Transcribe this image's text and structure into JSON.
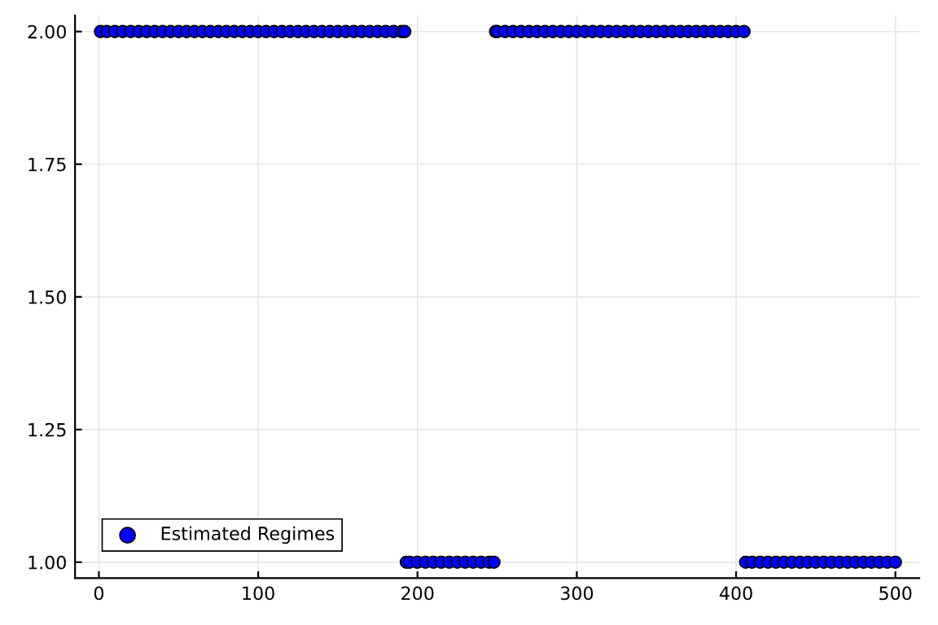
{
  "chart_data": {
    "type": "scatter",
    "x": [
      1,
      5,
      10,
      15,
      20,
      25,
      30,
      35,
      40,
      45,
      50,
      55,
      60,
      65,
      70,
      75,
      80,
      85,
      90,
      95,
      100,
      105,
      110,
      115,
      120,
      125,
      130,
      135,
      140,
      145,
      150,
      155,
      160,
      165,
      170,
      175,
      180,
      185,
      190,
      192,
      193,
      195,
      200,
      205,
      210,
      215,
      220,
      225,
      230,
      235,
      240,
      245,
      248,
      249,
      250,
      255,
      260,
      265,
      270,
      275,
      280,
      285,
      290,
      295,
      300,
      305,
      310,
      315,
      320,
      325,
      330,
      335,
      340,
      345,
      350,
      355,
      360,
      365,
      370,
      375,
      380,
      385,
      390,
      395,
      400,
      405,
      406,
      410,
      415,
      420,
      425,
      430,
      435,
      440,
      445,
      450,
      455,
      460,
      465,
      470,
      475,
      480,
      485,
      490,
      495,
      500
    ],
    "series": [
      {
        "name": "Estimated Regimes",
        "color": "#0000ff",
        "values": [
          2,
          2,
          2,
          2,
          2,
          2,
          2,
          2,
          2,
          2,
          2,
          2,
          2,
          2,
          2,
          2,
          2,
          2,
          2,
          2,
          2,
          2,
          2,
          2,
          2,
          2,
          2,
          2,
          2,
          2,
          2,
          2,
          2,
          2,
          2,
          2,
          2,
          2,
          2,
          2,
          1,
          1,
          1,
          1,
          1,
          1,
          1,
          1,
          1,
          1,
          1,
          1,
          1,
          2,
          2,
          2,
          2,
          2,
          2,
          2,
          2,
          2,
          2,
          2,
          2,
          2,
          2,
          2,
          2,
          2,
          2,
          2,
          2,
          2,
          2,
          2,
          2,
          2,
          2,
          2,
          2,
          2,
          2,
          2,
          2,
          2,
          1,
          1,
          1,
          1,
          1,
          1,
          1,
          1,
          1,
          1,
          1,
          1,
          1,
          1,
          1,
          1,
          1,
          1,
          1,
          1
        ]
      }
    ],
    "xlim": [
      -14.97,
      514.97
    ],
    "xticks": [
      0,
      100,
      200,
      300,
      400,
      500
    ],
    "ylim": [
      0.97,
      2.03
    ],
    "yticks": [
      {
        "value": 1,
        "label": "1.00"
      },
      {
        "value": 1.25,
        "label": "1.25"
      },
      {
        "value": 1.5,
        "label": "1.50"
      },
      {
        "value": 1.75,
        "label": "1.75"
      },
      {
        "value": 2,
        "label": "2.00"
      }
    ],
    "grid": true,
    "legend": "bottom left",
    "marker": "circle"
  }
}
